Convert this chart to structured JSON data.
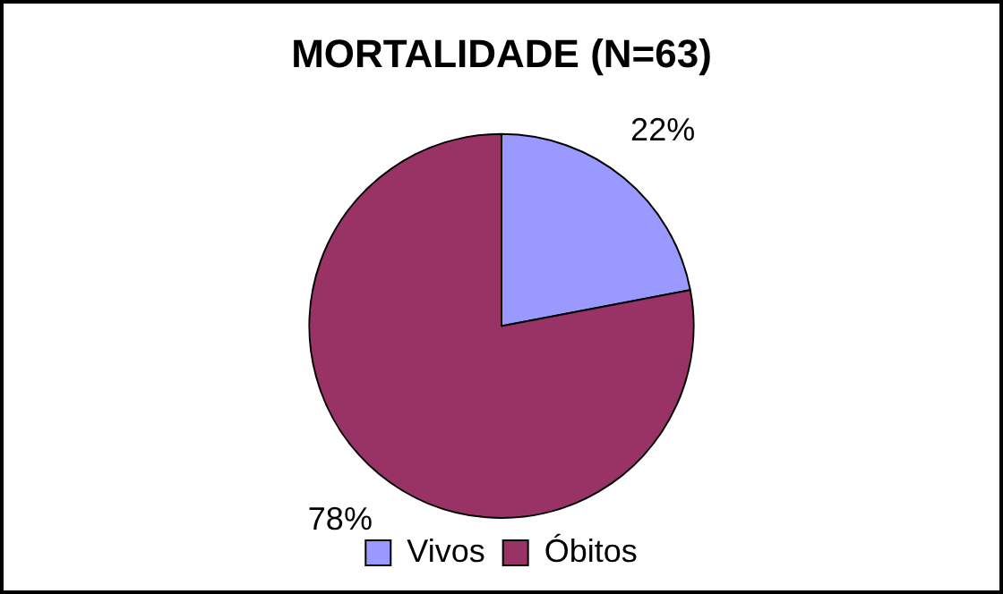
{
  "chart_data": {
    "type": "pie",
    "title": "MORTALIDADE (N=63)",
    "categories": [
      "Vivos",
      "Óbitos"
    ],
    "values": [
      22,
      78
    ],
    "colors": [
      "#9999ff",
      "#993366"
    ],
    "value_labels": [
      "22%",
      "78%"
    ],
    "legend": "bottom"
  }
}
